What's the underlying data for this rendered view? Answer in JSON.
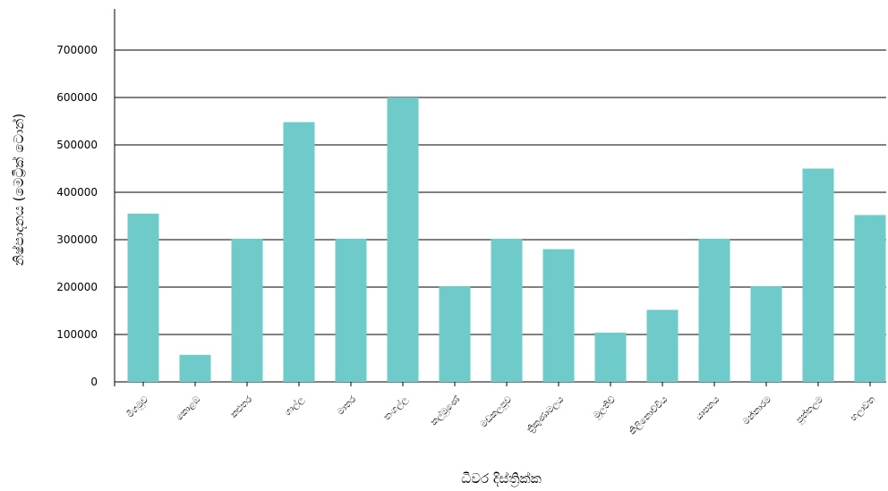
{
  "chart_data": {
    "type": "bar",
    "title": "",
    "xlabel": "ධීවර දිස්ත්‍රික්ක",
    "ylabel": "නිෂ්පාදනය (මෙට්‍රික් ටොන්)",
    "ylim": [
      0,
      780000
    ],
    "yticks": [
      0,
      100000,
      200000,
      300000,
      400000,
      500000,
      600000,
      700000
    ],
    "grid": true,
    "bar_color": "#6ecbc9",
    "categories": [
      "මීගමුව",
      "කොළඹ",
      "කළුතර",
      "ගාල්ල",
      "මාතර",
      "තංගල්ල",
      "කල්මුණේ",
      "මඩකලපුව",
      "ත්‍රිකුණාමලය",
      "මුලතිව්",
      "කිලිනොච්චිය",
      "යාපනය",
      "මන්නාරම",
      "පුත්තලම",
      "හලාවත"
    ],
    "values": [
      355000,
      57000,
      302000,
      548000,
      302000,
      600000,
      202000,
      302000,
      280000,
      104000,
      152000,
      302000,
      202000,
      450000,
      352000
    ]
  }
}
